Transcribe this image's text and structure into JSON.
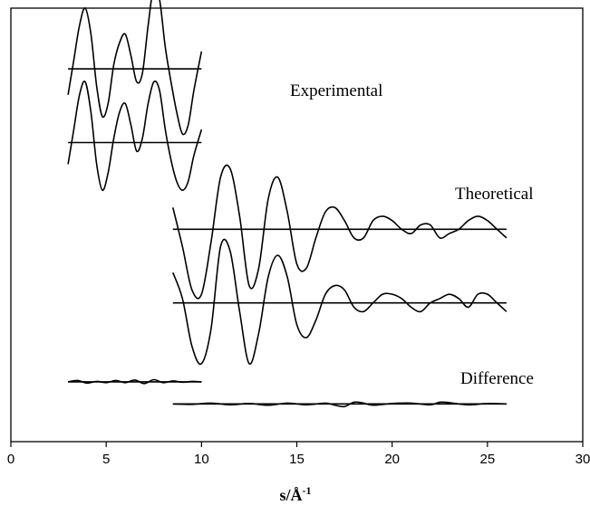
{
  "chart_data": {
    "type": "line",
    "xlim": [
      0,
      30
    ],
    "xticks": [
      0,
      5,
      10,
      15,
      20,
      25,
      30
    ],
    "xlabel": "s/Å",
    "xlabel_superscript": "-1",
    "grid": false,
    "legend": "none",
    "annotations": [
      "Experimental",
      "Theoretical",
      "Difference"
    ],
    "series": [
      {
        "offset": 0.86,
        "x": [
          3.0,
          3.3,
          3.6,
          3.9,
          4.2,
          4.5,
          4.8,
          5.1,
          5.4,
          5.7,
          6.0,
          6.3,
          6.6,
          6.9,
          7.2,
          7.5,
          7.8,
          8.1,
          8.4,
          8.7,
          9.0,
          9.3,
          9.6,
          10.0
        ],
        "y": [
          -0.06,
          0.02,
          0.1,
          0.14,
          0.08,
          -0.04,
          -0.11,
          -0.08,
          0.01,
          0.06,
          0.08,
          0.03,
          -0.03,
          -0.01,
          0.1,
          0.19,
          0.16,
          0.05,
          -0.03,
          -0.1,
          -0.15,
          -0.13,
          -0.05,
          0.04
        ]
      },
      {
        "offset": 0.69,
        "x": [
          3.0,
          3.3,
          3.6,
          3.9,
          4.2,
          4.5,
          4.8,
          5.1,
          5.4,
          5.7,
          6.0,
          6.3,
          6.6,
          6.9,
          7.2,
          7.5,
          7.8,
          8.1,
          8.4,
          8.7,
          9.0,
          9.3,
          9.6,
          10.0
        ],
        "y": [
          -0.05,
          0.03,
          0.11,
          0.14,
          0.07,
          -0.05,
          -0.11,
          -0.07,
          0.01,
          0.07,
          0.09,
          0.04,
          -0.02,
          0.01,
          0.09,
          0.14,
          0.12,
          0.03,
          -0.04,
          -0.09,
          -0.11,
          -0.09,
          -0.03,
          0.03
        ]
      },
      {
        "offset": 0.49,
        "x": [
          8.5,
          9.0,
          9.5,
          10.0,
          10.5,
          11.0,
          11.5,
          12.0,
          12.5,
          13.0,
          13.5,
          14.0,
          14.5,
          15.0,
          15.5,
          16.0,
          16.5,
          17.0,
          17.5,
          18.0,
          18.5,
          19.0,
          19.5,
          20.0,
          20.5,
          21.0,
          21.5,
          22.0,
          22.5,
          23.0,
          23.5,
          24.0,
          24.5,
          25.0,
          25.5,
          26.0
        ],
        "y": [
          0.05,
          -0.04,
          -0.14,
          -0.15,
          -0.03,
          0.12,
          0.14,
          0.03,
          -0.13,
          -0.09,
          0.07,
          0.12,
          0.04,
          -0.08,
          -0.09,
          -0.02,
          0.04,
          0.05,
          0.02,
          -0.02,
          -0.02,
          0.02,
          0.03,
          0.02,
          0.0,
          -0.01,
          0.01,
          0.01,
          -0.02,
          -0.01,
          0.0,
          0.02,
          0.03,
          0.02,
          0.0,
          -0.02
        ]
      },
      {
        "offset": 0.32,
        "x": [
          8.5,
          9.0,
          9.5,
          10.0,
          10.5,
          11.0,
          11.5,
          12.0,
          12.5,
          13.0,
          13.5,
          14.0,
          14.5,
          15.0,
          15.5,
          16.0,
          16.5,
          17.0,
          17.5,
          18.0,
          18.5,
          19.0,
          19.5,
          20.0,
          20.5,
          21.0,
          21.5,
          22.0,
          22.5,
          23.0,
          23.5,
          24.0,
          24.5,
          25.0,
          25.5,
          26.0
        ],
        "y": [
          0.07,
          0.01,
          -0.1,
          -0.14,
          -0.06,
          0.13,
          0.12,
          -0.02,
          -0.14,
          -0.07,
          0.06,
          0.11,
          0.06,
          -0.05,
          -0.08,
          -0.04,
          0.02,
          0.04,
          0.03,
          -0.01,
          -0.02,
          0.0,
          0.02,
          0.02,
          0.01,
          -0.01,
          -0.02,
          0.0,
          0.01,
          0.02,
          0.01,
          -0.01,
          0.02,
          0.02,
          0.0,
          -0.02
        ]
      },
      {
        "offset": 0.138,
        "x": [
          3.0,
          3.5,
          4.0,
          4.5,
          5.0,
          5.5,
          6.0,
          6.5,
          7.0,
          7.5,
          8.0,
          8.5,
          9.0,
          9.5,
          10.0
        ],
        "y": [
          0.0,
          0.003,
          -0.003,
          0.001,
          -0.002,
          0.003,
          -0.002,
          0.004,
          -0.004,
          0.005,
          -0.002,
          0.002,
          -0.001,
          0.001,
          0.0
        ]
      },
      {
        "offset": 0.087,
        "x": [
          8.5,
          9.5,
          10.5,
          11.5,
          12.5,
          13.5,
          14.5,
          15.5,
          16.5,
          17.0,
          17.5,
          18.0,
          18.5,
          19.0,
          20.0,
          21.0,
          22.0,
          22.5,
          23.0,
          24.0,
          25.0,
          26.0
        ],
        "y": [
          0.0,
          -0.001,
          0.002,
          -0.002,
          0.001,
          -0.003,
          0.002,
          -0.002,
          0.002,
          -0.003,
          -0.006,
          0.004,
          0.002,
          -0.003,
          0.001,
          0.002,
          -0.002,
          0.004,
          0.003,
          -0.002,
          0.001,
          0.0
        ]
      }
    ]
  }
}
